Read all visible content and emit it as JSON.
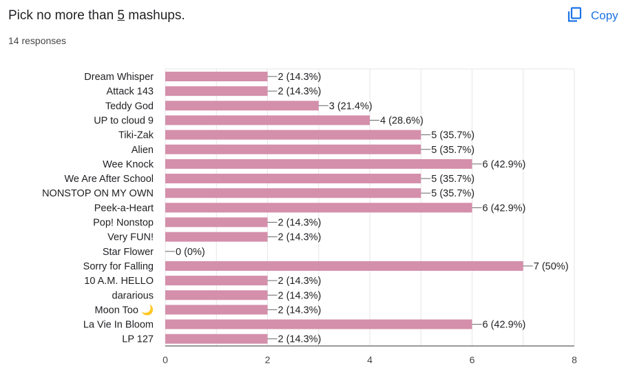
{
  "header": {
    "question_prefix": "Pick no more than ",
    "question_number": "5",
    "question_suffix": " mashups.",
    "responses": "14 responses",
    "copy_label": "Copy",
    "copy_icon": "copy-icon"
  },
  "colors": {
    "bar": "#d48fab",
    "accent": "#1a73e8",
    "grid": "#e6e6e6"
  },
  "chart_data": {
    "type": "bar",
    "orientation": "horizontal",
    "categories": [
      "Dream Whisper",
      "Attack 143",
      "Teddy God",
      "UP to cloud 9",
      "Tiki-Zak",
      "Alien",
      "Wee Knock",
      "We Are After School",
      "NONSTOP ON MY OWN",
      "Peek-a-Heart",
      "Pop! Nonstop",
      "Very FUN!",
      "Star Flower",
      "Sorry for Falling",
      "10 A.M. HELLO",
      "dararious",
      "Moon Too 🌙",
      "La Vie In Bloom",
      "LP 127"
    ],
    "values": [
      2,
      2,
      3,
      4,
      5,
      5,
      6,
      5,
      5,
      6,
      2,
      2,
      0,
      7,
      2,
      2,
      2,
      6,
      2
    ],
    "data_labels": [
      "2 (14.3%)",
      "2 (14.3%)",
      "3 (21.4%)",
      "4 (28.6%)",
      "5 (35.7%)",
      "5 (35.7%)",
      "6 (42.9%)",
      "5 (35.7%)",
      "5 (35.7%)",
      "6 (42.9%)",
      "2 (14.3%)",
      "2 (14.3%)",
      "0 (0%)",
      "7 (50%)",
      "2 (14.3%)",
      "2 (14.3%)",
      "2 (14.3%)",
      "6 (42.9%)",
      "2 (14.3%)"
    ],
    "xticks": [
      "0",
      "2",
      "4",
      "6",
      "8"
    ],
    "xlim": [
      0,
      8
    ],
    "title": "",
    "xlabel": "",
    "ylabel": "",
    "grid": true,
    "legend": "none"
  }
}
